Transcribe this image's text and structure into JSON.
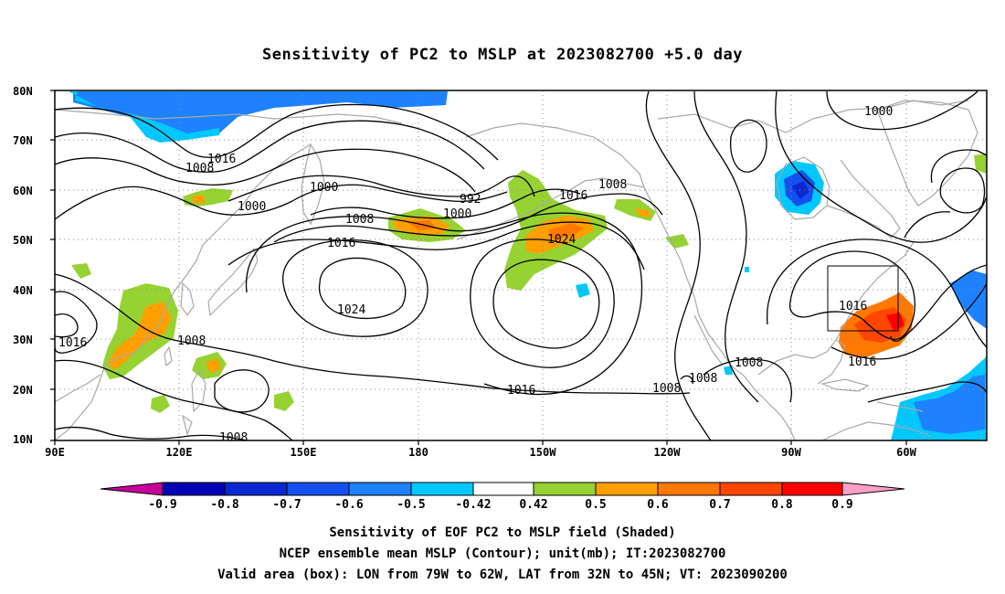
{
  "title": "Sensitivity of PC2 to MSLP at 2023082700 +5.0 day",
  "lat_labels": [
    "80N",
    "70N",
    "60N",
    "50N",
    "40N",
    "30N",
    "20N",
    "10N"
  ],
  "lon_labels": [
    "90E",
    "120E",
    "150E",
    "180",
    "150W",
    "120W",
    "90W",
    "60W"
  ],
  "contour_labels": [
    {
      "text": "1016"
    },
    {
      "text": "1008"
    },
    {
      "text": "1000"
    },
    {
      "text": "1000"
    },
    {
      "text": "992"
    },
    {
      "text": "1000"
    },
    {
      "text": "1008"
    },
    {
      "text": "1016"
    },
    {
      "text": "1008"
    },
    {
      "text": "1016"
    },
    {
      "text": "1024"
    },
    {
      "text": "1024"
    },
    {
      "text": "1000"
    },
    {
      "text": "1016"
    },
    {
      "text": "1008"
    },
    {
      "text": "1016"
    },
    {
      "text": "1008"
    },
    {
      "text": "1008"
    },
    {
      "text": "1008"
    },
    {
      "text": "1016"
    },
    {
      "text": "1016"
    },
    {
      "text": "1008"
    }
  ],
  "colorbar": {
    "labels": [
      "-0.9",
      "-0.8",
      "-0.7",
      "-0.6",
      "-0.5",
      "-0.42",
      "0.42",
      "0.5",
      "0.6",
      "0.7",
      "0.8",
      "0.9"
    ],
    "colors": {
      "neg_end": "#c8009a",
      "c1": "#0000b4",
      "c2": "#0a28d2",
      "c3": "#1450f0",
      "c4": "#1e82ff",
      "c5": "#00c8ff",
      "white": "#ffffff",
      "c6": "#96d232",
      "c7": "#ffa000",
      "c8": "#ff7800",
      "c9": "#ff4600",
      "c10": "#ff0000",
      "pos_end": "#ff9ec8"
    }
  },
  "captions": [
    "Sensitivity of EOF PC2 to MSLP field (Shaded)",
    "NCEP ensemble mean MSLP (Contour); unit(mb); IT:2023082700",
    "Valid area (box): LON from 79W to 62W, LAT from 32N to 45N; VT: 2023090200"
  ]
}
